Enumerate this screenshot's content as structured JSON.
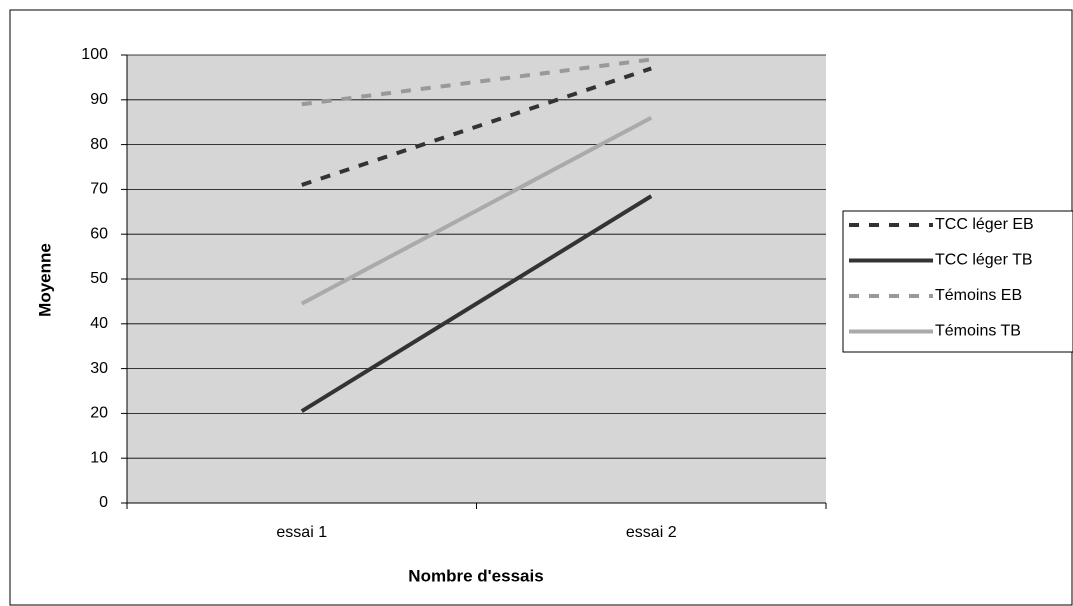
{
  "chart_data": {
    "type": "line",
    "x_label": "Nombre d'essais",
    "y_label": "Moyenne",
    "categories": [
      "essai 1",
      "essai 2"
    ],
    "series": [
      {
        "name": "TCC léger EB",
        "color": "#333333",
        "dashed": true,
        "values": [
          71,
          97
        ]
      },
      {
        "name": "TCC léger TB",
        "color": "#333333",
        "dashed": false,
        "values": [
          20.5,
          68.5
        ]
      },
      {
        "name": "Témoins EB",
        "color": "#999999",
        "dashed": true,
        "values": [
          89,
          99
        ]
      },
      {
        "name": "Témoins TB",
        "color": "#aaaaaa",
        "dashed": false,
        "values": [
          44.5,
          86
        ]
      }
    ],
    "ylim": [
      0,
      100
    ],
    "yticks": [
      0,
      10,
      20,
      30,
      40,
      50,
      60,
      70,
      80,
      90,
      100
    ],
    "grid": true,
    "legend": "right"
  }
}
